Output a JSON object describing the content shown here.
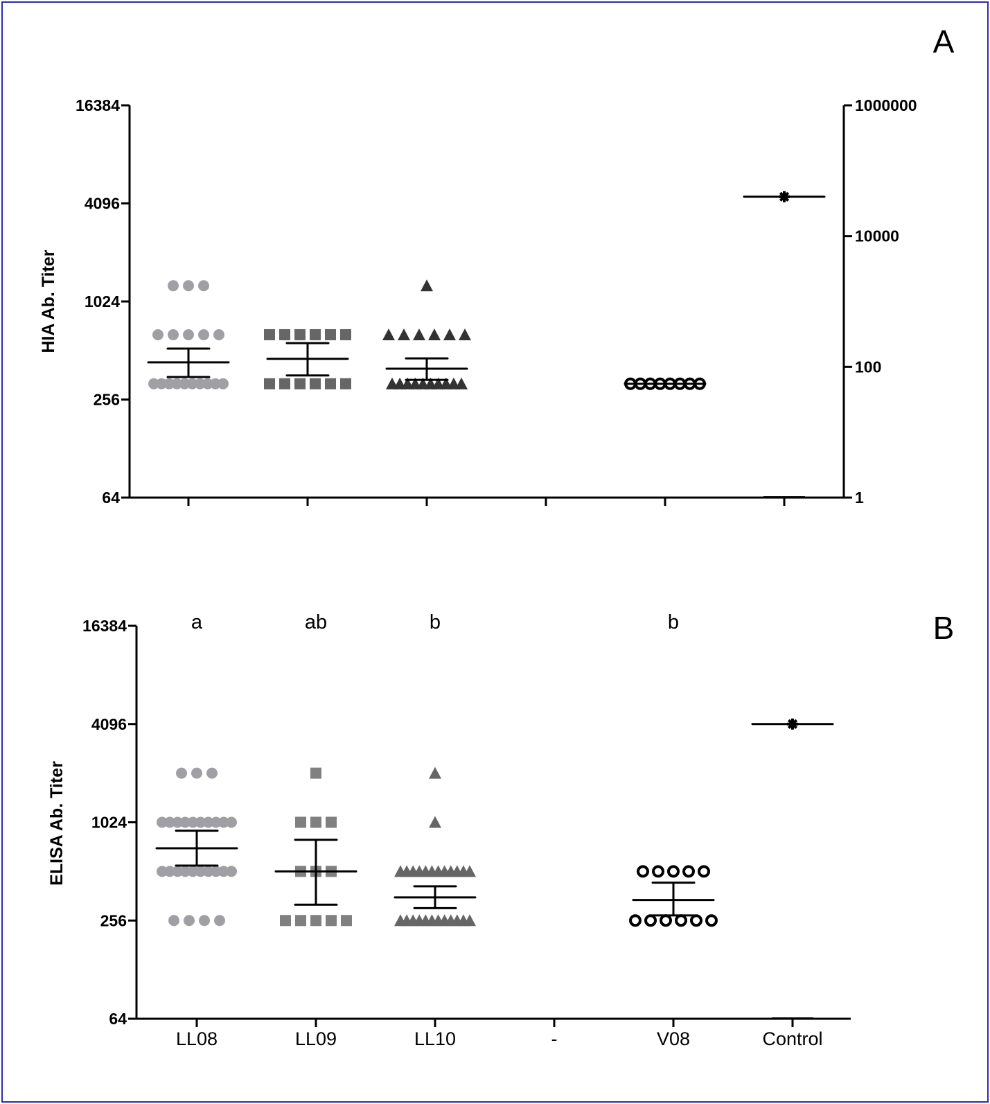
{
  "chart_data": [
    {
      "panel_label": "A",
      "type": "scatter",
      "ylabel": "HIA Ab. Titer",
      "yscale": "log2",
      "ylim": [
        64,
        16384
      ],
      "yticks": [
        "64",
        "256",
        "1024",
        "4096",
        "16384"
      ],
      "y2scale": "log10",
      "y2lim": [
        1,
        1000000
      ],
      "y2ticks": [
        "1",
        "100",
        "10000",
        "1000000"
      ],
      "categories": [
        "LL08",
        "LL09",
        "LL10",
        "-",
        "V08",
        "Control"
      ],
      "x_tick_labels_shown": false,
      "grid": false,
      "groups": [
        {
          "category": "LL08",
          "marker": "circle",
          "color": "#a0a0a4",
          "points": {
            "1280": 3,
            "640": 5,
            "320": 10
          },
          "mean": 433,
          "sem_low": 352,
          "sem_high": 526
        },
        {
          "category": "LL09",
          "marker": "square",
          "color": "#666666",
          "points": {
            "640": 6,
            "320": 6
          },
          "mean": 455,
          "sem_low": 360,
          "sem_high": 568
        },
        {
          "category": "LL10",
          "marker": "triangle",
          "color": "#333333",
          "points": {
            "1280": 1,
            "640": 6,
            "320": 10
          },
          "mean": 396,
          "sem_low": 338,
          "sem_high": 458
        },
        {
          "category": "V08",
          "marker": "open-circle",
          "color": "#000000",
          "points": {
            "320": 8
          },
          "mean": 320
        },
        {
          "category": "Control",
          "marker": "asterisk",
          "color": "#000000",
          "axis": "right",
          "points": {
            "40000": 1
          },
          "mean": 40000
        }
      ]
    },
    {
      "panel_label": "B",
      "type": "scatter",
      "ylabel": "ELISA Ab. Titer",
      "yscale": "log2",
      "ylim": [
        64,
        16384
      ],
      "yticks": [
        "64",
        "256",
        "1024",
        "4096",
        "16384"
      ],
      "categories": [
        "LL08",
        "LL09",
        "LL10",
        "-",
        "V08",
        "Control"
      ],
      "significance_letters": [
        "a",
        "ab",
        "b",
        "",
        "b",
        ""
      ],
      "grid": false,
      "groups": [
        {
          "category": "LL08",
          "marker": "circle",
          "color": "#a0a0a4",
          "points": {
            "2048": 3,
            "1024": 10,
            "512": 10,
            "256": 4
          },
          "mean": 710,
          "sem_low": 556,
          "sem_high": 910
        },
        {
          "category": "LL09",
          "marker": "square",
          "color": "#808080",
          "points": {
            "2048": 1,
            "1024": 3,
            "512": 3,
            "256": 5
          },
          "mean": 512,
          "sem_low": 320,
          "sem_high": 800
        },
        {
          "category": "LL10",
          "marker": "triangle",
          "color": "#666666",
          "points": {
            "2048": 1,
            "1024": 1,
            "512": 12,
            "256": 12
          },
          "mean": 355,
          "sem_low": 305,
          "sem_high": 415
        },
        {
          "category": "V08",
          "marker": "open-circle",
          "color": "#000000",
          "points": {
            "512": 5,
            "256": 6
          },
          "mean": 342,
          "sem_low": 275,
          "sem_high": 437
        },
        {
          "category": "Control",
          "marker": "asterisk",
          "color": "#000000",
          "points": {
            "4096": 1
          },
          "mean": 4096
        }
      ]
    }
  ]
}
